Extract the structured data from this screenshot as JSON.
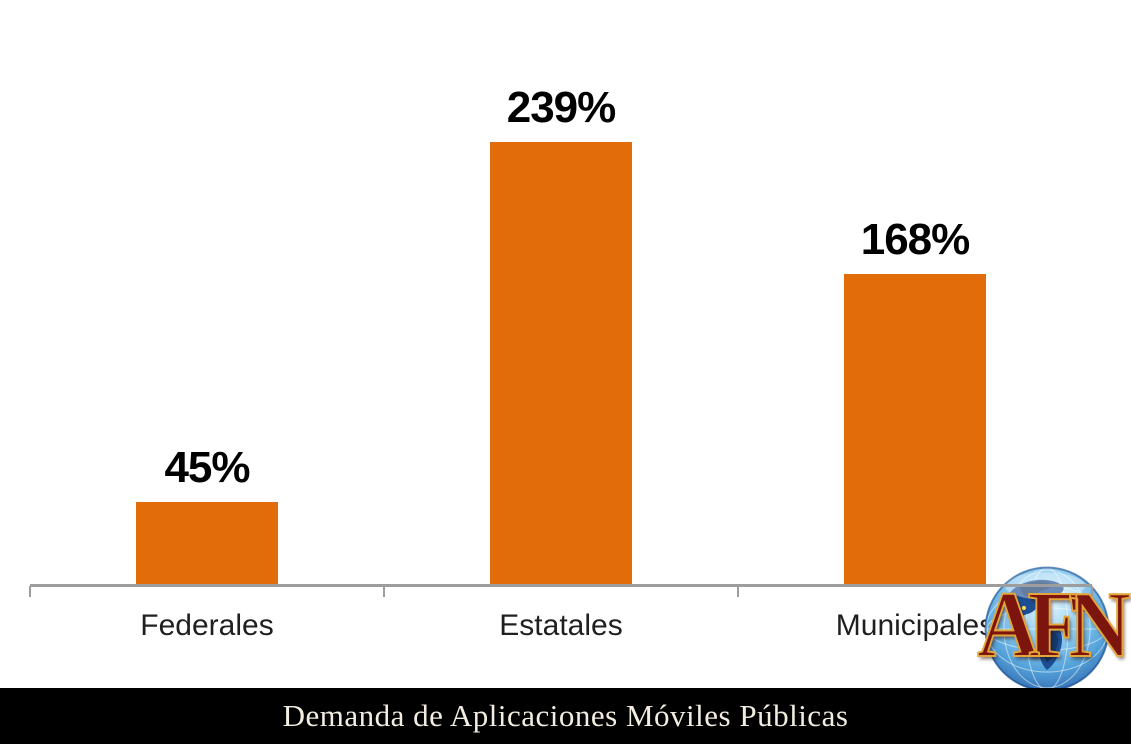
{
  "chart_data": {
    "type": "bar",
    "title": "Demanda de Aplicaciones Móviles Públicas",
    "categories": [
      "Federales",
      "Estatales",
      "Municipales"
    ],
    "values": [
      45,
      239,
      168
    ],
    "value_labels": [
      "45%",
      "239%",
      "168%"
    ],
    "unit": "%",
    "xlabel": "",
    "ylabel": "",
    "ylim": [
      0,
      260
    ],
    "grid": false,
    "legend": false,
    "y_axis_visible": false,
    "bar_color": "#E26C0A",
    "axis_color": "#9D9D9D",
    "value_label_color": "#000000",
    "category_label_color": "#1F1F1F"
  },
  "footer": {
    "title": "Demanda de Aplicaciones Móviles Públicas",
    "background_color": "#000000",
    "text_color": "#F2EDE0"
  },
  "logo": {
    "text": "AFN",
    "text_color": "#7D150F",
    "outline_color": "#E2A63B",
    "icon": "globe-icon"
  }
}
